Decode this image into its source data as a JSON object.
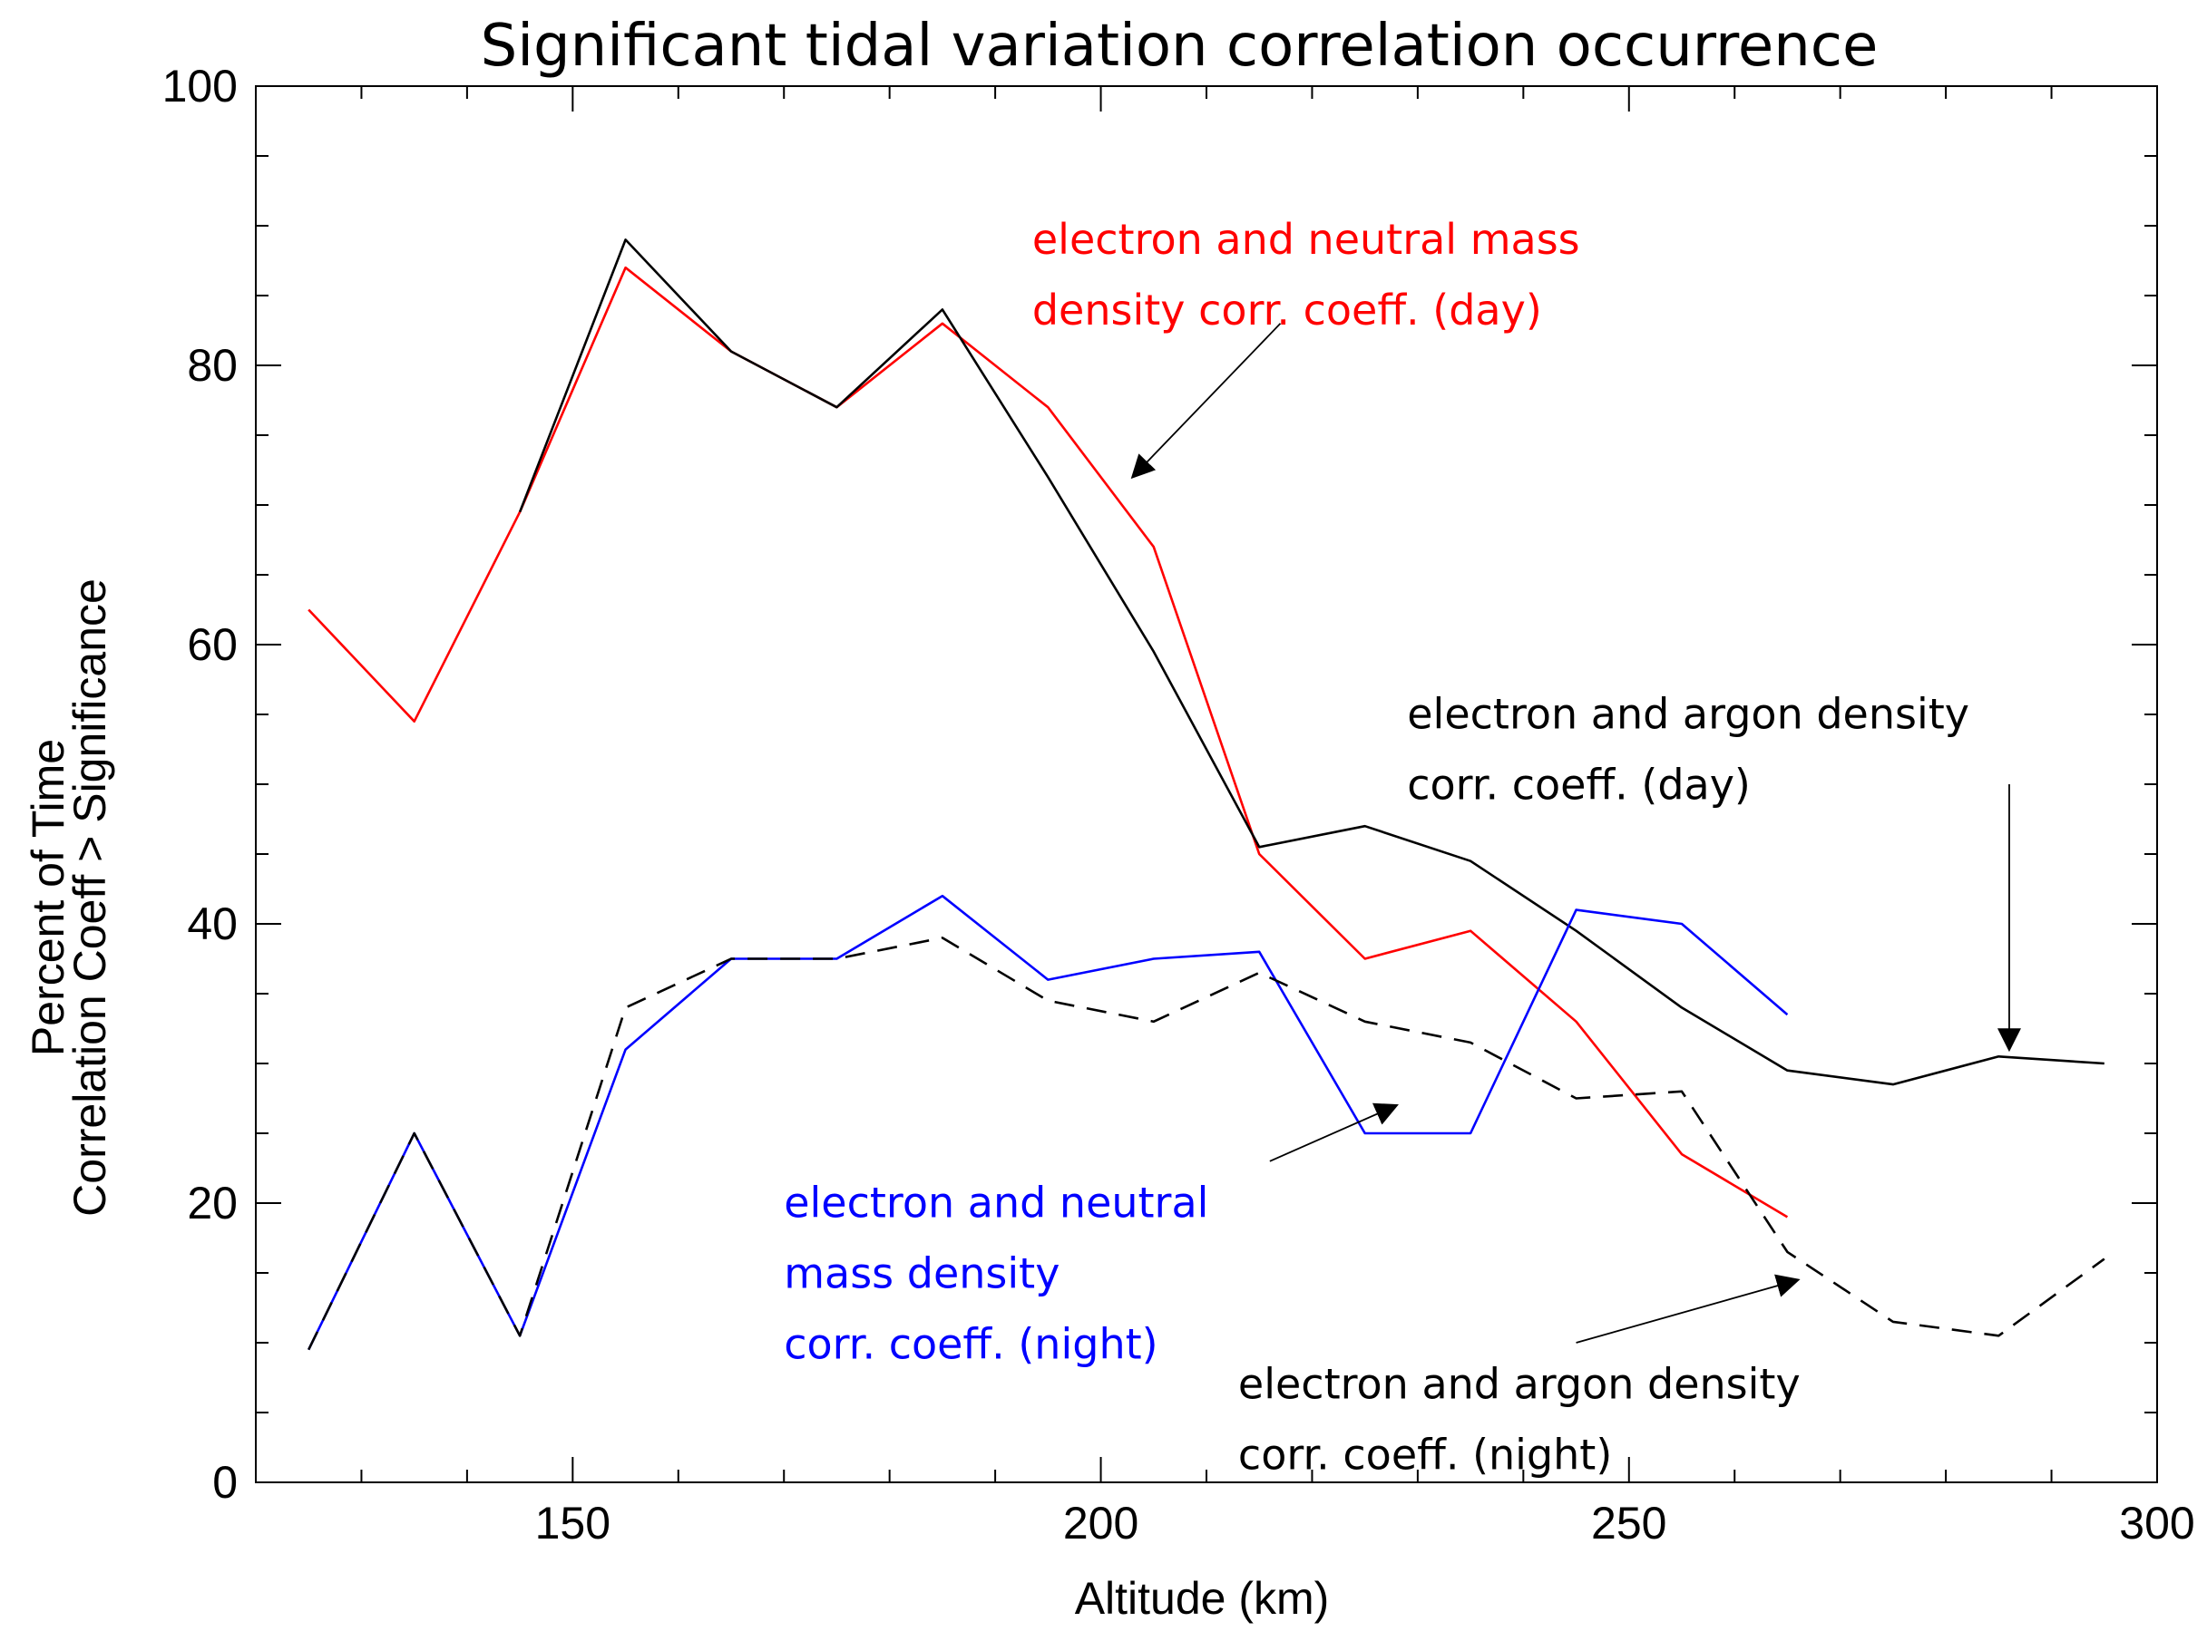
{
  "chart_data": {
    "type": "line",
    "title": "Significant tidal variation correlation occurrence",
    "xlabel": "Altitude (km)",
    "ylabel_lines": [
      "Percent of Time",
      "Correlation Coeff > Significance"
    ],
    "xlim": [
      120,
      300
    ],
    "ylim": [
      0,
      100
    ],
    "x_ticks": [
      150,
      200,
      250,
      300
    ],
    "x_tick_labels": [
      "150",
      "200",
      "250",
      "300"
    ],
    "y_ticks": [
      0,
      20,
      40,
      60,
      80,
      100
    ],
    "y_tick_labels": [
      "0",
      "20",
      "40",
      "60",
      "80",
      "100"
    ],
    "grid": false,
    "series": [
      {
        "name": "electron and neutral mass density corr. coeff. (day)",
        "color": "#ff0000",
        "dash": "solid",
        "x": [
          125,
          135,
          145,
          155,
          165,
          175,
          185,
          195,
          205,
          215,
          225,
          235,
          245,
          255,
          265
        ],
        "values": [
          62.5,
          54.5,
          69.5,
          87,
          81,
          77,
          83,
          77,
          67,
          45,
          37.5,
          39.5,
          33,
          23.5,
          19
        ]
      },
      {
        "name": "electron and argon density corr. coeff. (day)",
        "color": "#000000",
        "dash": "solid",
        "x": [
          145,
          155,
          165,
          175,
          185,
          195,
          205,
          215,
          225,
          235,
          245,
          255,
          265,
          275,
          285,
          295
        ],
        "values": [
          69.5,
          89,
          81,
          77,
          84,
          72,
          59.5,
          45.5,
          47,
          44.5,
          39.5,
          34,
          29.5,
          28.5,
          30.5,
          30
        ]
      },
      {
        "name": "electron and neutral mass density corr. coeff. (night)",
        "color": "#0000ff",
        "dash": "solid",
        "x": [
          125,
          135,
          145,
          155,
          165,
          175,
          185,
          195,
          205,
          215,
          225,
          235,
          245,
          255,
          265
        ],
        "values": [
          9.5,
          25,
          10.5,
          31,
          37.5,
          37.5,
          42,
          36,
          37.5,
          38,
          25,
          25,
          41,
          40,
          33.5
        ]
      },
      {
        "name": "electron and argon density corr. coeff. (night)",
        "color": "#000000",
        "dash": "dashed",
        "x": [
          125,
          135,
          145,
          155,
          165,
          175,
          185,
          195,
          205,
          215,
          225,
          235,
          245,
          255,
          265,
          275,
          285,
          295
        ],
        "values": [
          9.5,
          25,
          10.5,
          34,
          37.5,
          37.5,
          39,
          34.5,
          33,
          36.5,
          33,
          31.5,
          27.5,
          28,
          16.5,
          11.5,
          10.5,
          16
        ]
      }
    ],
    "annotations": [
      {
        "lines": [
          "electron and neutral mass",
          "density  corr. coeff. (day)"
        ],
        "color": "#ff0000",
        "text_at": [
          193.5,
          88
        ],
        "arrow_from": [
          217,
          83
        ],
        "arrow_to": [
          203,
          72
        ]
      },
      {
        "lines": [
          "electron and argon density",
          "corr. coeff. (day)"
        ],
        "color": "#000000",
        "text_at": [
          229,
          54
        ],
        "arrow_from": [
          286,
          50
        ],
        "arrow_to": [
          286,
          31
        ]
      },
      {
        "lines": [
          "electron and neutral",
          "mass density",
          "corr. coeff. (night)"
        ],
        "color": "#0000ff",
        "text_at": [
          170,
          19
        ],
        "arrow_from": [
          216,
          23
        ],
        "arrow_to": [
          228,
          27
        ]
      },
      {
        "lines": [
          "electron and argon density",
          "corr. coeff. (night)"
        ],
        "color": "#000000",
        "text_at": [
          213,
          6
        ],
        "arrow_from": [
          245,
          10
        ],
        "arrow_to": [
          266,
          14.5
        ]
      }
    ]
  }
}
